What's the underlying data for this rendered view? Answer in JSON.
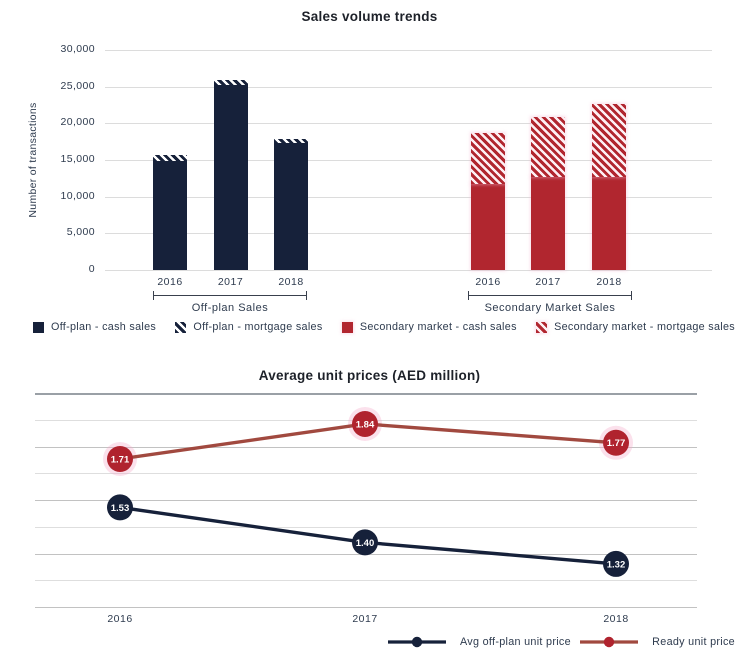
{
  "chart_data": [
    {
      "type": "bar",
      "stacked": true,
      "title": "Sales volume trends",
      "ylabel": "Number of transactions",
      "ylim": [
        0,
        30000
      ],
      "yticks": [
        0,
        5000,
        10000,
        15000,
        20000,
        25000,
        30000
      ],
      "ytick_labels": [
        "0",
        "5,000",
        "10,000",
        "15,000",
        "20,000",
        "25,000",
        "30,000"
      ],
      "grid": true,
      "groups": [
        {
          "label": "Off-plan Sales",
          "categories": [
            "2016",
            "2017",
            "2018"
          ],
          "series": [
            {
              "name": "Off-plan - cash sales",
              "style": "solid-navy",
              "values": [
                14900,
                25200,
                17300
              ]
            },
            {
              "name": "Off-plan - mortgage sales",
              "style": "hatch-navy",
              "values": [
                800,
                700,
                600
              ]
            }
          ]
        },
        {
          "label": "Secondary Market Sales",
          "categories": [
            "2016",
            "2017",
            "2018"
          ],
          "series": [
            {
              "name": "Secondary market - cash sales",
              "style": "solid-red",
              "values": [
                11700,
                12700,
                12700
              ]
            },
            {
              "name": "Secondary market - mortgage sales",
              "style": "hatch-red",
              "values": [
                7000,
                8100,
                9900
              ]
            }
          ]
        }
      ],
      "legend": [
        {
          "label": "Off-plan - cash sales",
          "swatch": "solid-navy"
        },
        {
          "label": "Off-plan - mortgage sales",
          "swatch": "hatch-navy"
        },
        {
          "label": "Secondary market - cash sales",
          "swatch": "solid-red"
        },
        {
          "label": "Secondary market - mortgage sales",
          "swatch": "hatch-red"
        }
      ],
      "colors": {
        "navy": "#16213a",
        "red": "#b1262f"
      }
    },
    {
      "type": "line",
      "title": "Average unit prices (AED million)",
      "categories": [
        "2016",
        "2017",
        "2018"
      ],
      "series": [
        {
          "name": "Avg off-plan unit price",
          "values": [
            1.53,
            1.4,
            1.32
          ],
          "labels": [
            "1.53",
            "1.40",
            "1.32"
          ],
          "color": "#16213a",
          "marker_color": "#16213a"
        },
        {
          "name": "Ready unit price",
          "values": [
            1.71,
            1.84,
            1.77
          ],
          "labels": [
            "1.71",
            "1.84",
            "1.77"
          ],
          "color": "#a1493f",
          "marker_color": "#b0232e"
        }
      ],
      "grid": true,
      "legend_position": "bottom-right"
    }
  ]
}
